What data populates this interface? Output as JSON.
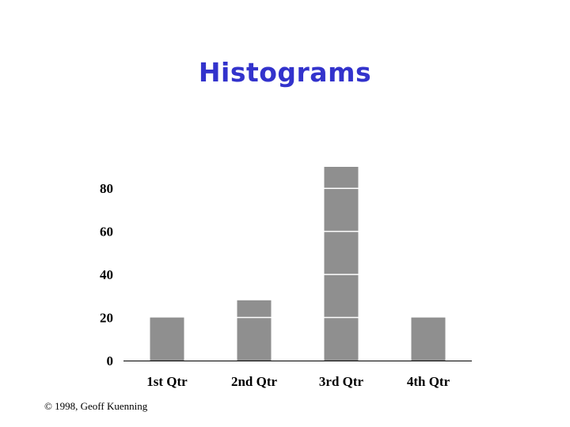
{
  "slide": {
    "title": "Histograms",
    "footer": "© 1998, Geoff Kuenning"
  },
  "colors": {
    "title": "#3333cc",
    "bar": "#8f8f8f",
    "bar_divider": "#ffffff",
    "axis": "#000000"
  },
  "chart_data": {
    "type": "bar",
    "categories": [
      "1st Qtr",
      "2nd Qtr",
      "3rd Qtr",
      "4th Qtr"
    ],
    "values": [
      20,
      28,
      90,
      20
    ],
    "ylim": [
      0,
      90
    ],
    "yticks": [
      0,
      20,
      40,
      60,
      80
    ],
    "bar_divider_interval": 20,
    "grid": false,
    "legend": "none"
  }
}
